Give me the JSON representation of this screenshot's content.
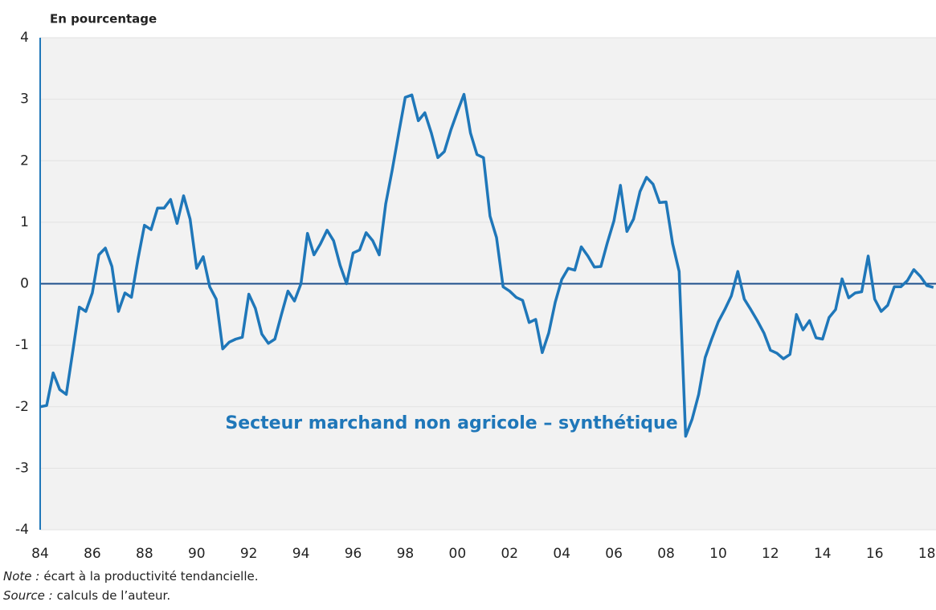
{
  "chart_data": {
    "type": "line",
    "ylabel": "En pourcentage",
    "x": [
      1984,
      1984.25,
      1984.5,
      1984.75,
      1985,
      1985.25,
      1985.5,
      1985.75,
      1986,
      1986.25,
      1986.5,
      1986.75,
      1987,
      1987.25,
      1987.5,
      1987.75,
      1988,
      1988.25,
      1988.5,
      1988.75,
      1989,
      1989.25,
      1989.5,
      1989.75,
      1990,
      1990.25,
      1990.5,
      1990.75,
      1991,
      1991.25,
      1991.5,
      1991.75,
      1992,
      1992.25,
      1992.5,
      1992.75,
      1993,
      1993.25,
      1993.5,
      1993.75,
      1994,
      1994.25,
      1994.5,
      1994.75,
      1995,
      1995.25,
      1995.5,
      1995.75,
      1996,
      1996.25,
      1996.5,
      1996.75,
      1997,
      1997.25,
      1997.5,
      1997.75,
      1998,
      1998.25,
      1998.5,
      1998.75,
      1999,
      1999.25,
      1999.5,
      1999.75,
      2000,
      2000.25,
      2000.5,
      2000.75,
      2001,
      2001.25,
      2001.5,
      2001.75,
      2002,
      2002.25,
      2002.5,
      2002.75,
      2003,
      2003.25,
      2003.5,
      2003.75,
      2004,
      2004.25,
      2004.5,
      2004.75,
      2005,
      2005.25,
      2005.5,
      2005.75,
      2006,
      2006.25,
      2006.5,
      2006.75,
      2007,
      2007.25,
      2007.5,
      2007.75,
      2008,
      2008.25,
      2008.5,
      2008.75,
      2009,
      2009.25,
      2009.5,
      2009.75,
      2010,
      2010.25,
      2010.5,
      2010.75,
      2011,
      2011.25,
      2011.5,
      2011.75,
      2012,
      2012.25,
      2012.5,
      2012.75,
      2013,
      2013.25,
      2013.5,
      2013.75,
      2014,
      2014.25,
      2014.5,
      2014.75,
      2015,
      2015.25,
      2015.5,
      2015.75,
      2016,
      2016.25,
      2016.5,
      2016.75,
      2017,
      2017.25,
      2017.5,
      2017.75,
      2018,
      2018.25
    ],
    "series": [
      {
        "name": "Secteur marchand non agricole – synthétique",
        "color": "#1f77b9",
        "values": [
          -2.0,
          -1.98,
          -1.45,
          -1.72,
          -1.8,
          -1.1,
          -0.38,
          -0.45,
          -0.15,
          0.47,
          0.58,
          0.28,
          -0.45,
          -0.15,
          -0.22,
          0.4,
          0.95,
          0.88,
          1.23,
          1.23,
          1.37,
          0.98,
          1.43,
          1.05,
          0.25,
          0.44,
          -0.05,
          -0.25,
          -1.06,
          -0.95,
          -0.9,
          -0.87,
          -0.17,
          -0.4,
          -0.82,
          -0.97,
          -0.9,
          -0.5,
          -0.12,
          -0.28,
          0.0,
          0.82,
          0.47,
          0.65,
          0.87,
          0.7,
          0.3,
          0.0,
          0.5,
          0.55,
          0.83,
          0.7,
          0.47,
          1.3,
          1.85,
          2.45,
          3.03,
          3.07,
          2.65,
          2.78,
          2.45,
          2.05,
          2.15,
          2.5,
          2.8,
          3.08,
          2.45,
          2.1,
          2.05,
          1.1,
          0.75,
          -0.05,
          -0.12,
          -0.22,
          -0.27,
          -0.63,
          -0.58,
          -1.12,
          -0.8,
          -0.3,
          0.07,
          0.25,
          0.22,
          0.6,
          0.45,
          0.27,
          0.28,
          0.67,
          1.02,
          1.6,
          0.85,
          1.05,
          1.5,
          1.73,
          1.62,
          1.32,
          1.33,
          0.65,
          0.2,
          -2.48,
          -2.2,
          -1.8,
          -1.2,
          -0.9,
          -0.62,
          -0.42,
          -0.2,
          0.2,
          -0.25,
          -0.42,
          -0.6,
          -0.8,
          -1.08,
          -1.13,
          -1.22,
          -1.15,
          -0.5,
          -0.75,
          -0.6,
          -0.88,
          -0.9,
          -0.55,
          -0.42,
          0.08,
          -0.23,
          -0.15,
          -0.13,
          0.45,
          -0.25,
          -0.45,
          -0.35,
          -0.05,
          -0.05,
          0.05,
          0.23,
          0.12,
          -0.03,
          -0.06
        ]
      }
    ],
    "xlim": [
      1984,
      2018.35
    ],
    "xticks": [
      {
        "value": 1984,
        "label": "84"
      },
      {
        "value": 1986,
        "label": "86"
      },
      {
        "value": 1988,
        "label": "88"
      },
      {
        "value": 1990,
        "label": "90"
      },
      {
        "value": 1992,
        "label": "92"
      },
      {
        "value": 1994,
        "label": "94"
      },
      {
        "value": 1996,
        "label": "96"
      },
      {
        "value": 1998,
        "label": "98"
      },
      {
        "value": 2000,
        "label": "00"
      },
      {
        "value": 2002,
        "label": "02"
      },
      {
        "value": 2004,
        "label": "04"
      },
      {
        "value": 2006,
        "label": "06"
      },
      {
        "value": 2008,
        "label": "08"
      },
      {
        "value": 2010,
        "label": "10"
      },
      {
        "value": 2012,
        "label": "12"
      },
      {
        "value": 2014,
        "label": "14"
      },
      {
        "value": 2016,
        "label": "16"
      },
      {
        "value": 2018,
        "label": "18"
      }
    ],
    "ylim": [
      -4,
      4
    ],
    "yticks": [
      -4,
      -3,
      -2,
      -1,
      0,
      1,
      2,
      3,
      4
    ],
    "grid": true,
    "notes": [
      {
        "label": "Note :",
        "text": "écart à la productivité tendancielle."
      },
      {
        "label": "Source :",
        "text": "calculs de l’auteur."
      }
    ]
  }
}
